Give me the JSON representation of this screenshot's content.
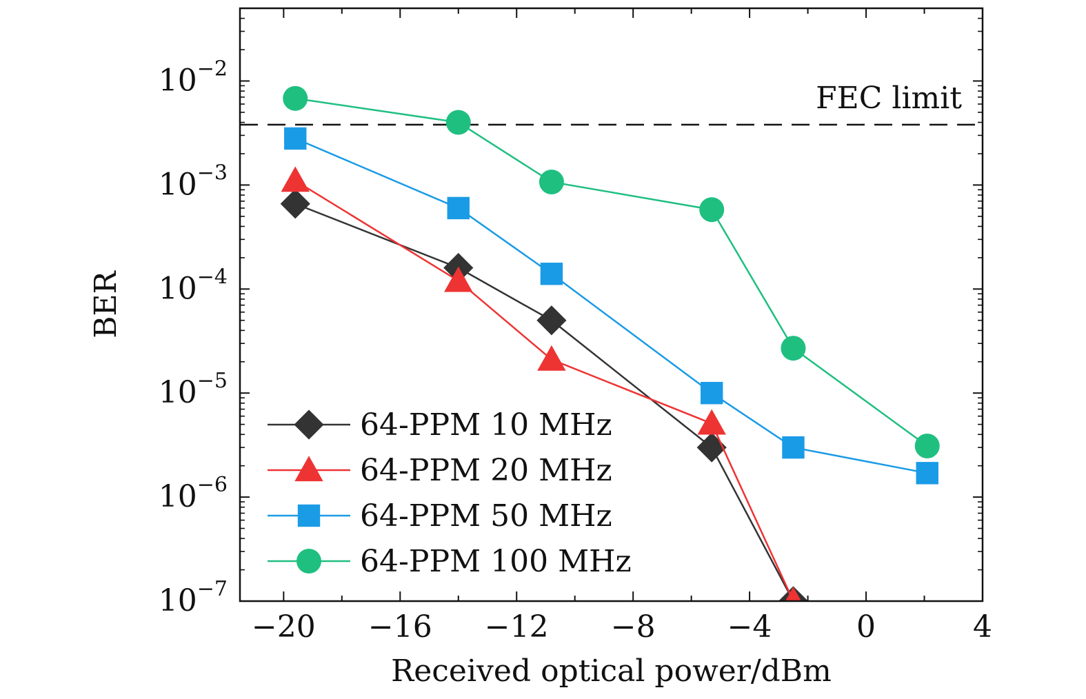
{
  "chart_data": {
    "type": "line",
    "title": "",
    "xlabel": "Received optical power/dBm",
    "ylabel": "BER",
    "xlim": [
      -21.5,
      4
    ],
    "ylim": [
      1e-07,
      0.05
    ],
    "yscale": "log",
    "xticks": [
      -20,
      -16,
      -12,
      -8,
      -4,
      0,
      4
    ],
    "xtick_labels": [
      "−20",
      "−16",
      "−12",
      "−8",
      "−4",
      "0",
      "4"
    ],
    "yticks": [
      {
        "base": "10",
        "exp": "−2",
        "value": 0.01
      },
      {
        "base": "10",
        "exp": "−3",
        "value": 0.001
      },
      {
        "base": "10",
        "exp": "−4",
        "value": 0.0001
      },
      {
        "base": "10",
        "exp": "−5",
        "value": 1e-05
      },
      {
        "base": "10",
        "exp": "−6",
        "value": 1e-06
      },
      {
        "base": "10",
        "exp": "−7",
        "value": 1e-07
      }
    ],
    "grid": false,
    "legend_position": "bottom-left",
    "annotations": [
      {
        "text": "FEC limit",
        "y": 0.0038,
        "style": "dashed-line"
      }
    ],
    "series": [
      {
        "name": "64-PPM 10 MHz",
        "color": "#333333",
        "marker": "diamond",
        "x": [
          -19.6,
          -14.0,
          -10.8,
          -5.3,
          -2.5
        ],
        "y": [
          0.00066,
          0.00016,
          5e-05,
          3e-06,
          1e-07
        ]
      },
      {
        "name": "64-PPM 20 MHz",
        "color": "#ee3333",
        "marker": "triangle",
        "x": [
          -19.6,
          -14.0,
          -10.8,
          -5.3,
          -2.5
        ],
        "y": [
          0.0011,
          0.00012,
          2.1e-05,
          5.1e-06,
          1e-07
        ]
      },
      {
        "name": "64-PPM 50 MHz",
        "color": "#1a9be6",
        "marker": "square",
        "x": [
          -19.6,
          -14.0,
          -10.8,
          -5.3,
          -2.5,
          2.1
        ],
        "y": [
          0.0028,
          0.0006,
          0.00014,
          1e-05,
          3e-06,
          1.7e-06
        ]
      },
      {
        "name": "64-PPM 100 MHz",
        "color": "#1fbf80",
        "marker": "circle",
        "x": [
          -19.6,
          -14.0,
          -10.8,
          -5.3,
          -2.5,
          2.1
        ],
        "y": [
          0.0068,
          0.004,
          0.00107,
          0.00058,
          2.7e-05,
          3.1e-06
        ]
      }
    ]
  }
}
